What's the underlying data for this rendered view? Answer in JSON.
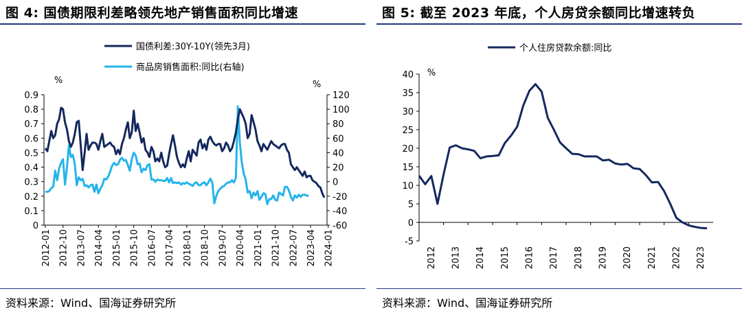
{
  "left": {
    "title": "图 4:  国债期限利差略领先地产销售面积同比增速",
    "source": "资料来源：Wind、国海证券研究所",
    "chart_data": {
      "type": "line",
      "x_ticks": [
        "2012-01",
        "2012-10",
        "2013-07",
        "2014-04",
        "2015-01",
        "2015-10",
        "2016-07",
        "2017-04",
        "2018-01",
        "2018-10",
        "2019-07",
        "2020-04",
        "2021-01",
        "2021-10",
        "2022-07",
        "2023-04",
        "2024-01"
      ],
      "ylabel_left": "%",
      "ylabel_right": "%",
      "ylim_left": [
        0,
        0.9
      ],
      "yticks_left": [
        "0",
        "0.1",
        "0.2",
        "0.3",
        "0.4",
        "0.5",
        "0.6",
        "0.7",
        "0.8",
        "0.9"
      ],
      "ylim_right": [
        -60,
        120
      ],
      "yticks_right": [
        "-60",
        "-40",
        "-20",
        "0",
        "20",
        "40",
        "60",
        "80",
        "100",
        "120"
      ],
      "legend_position": "top-center",
      "series": [
        {
          "name": "国债利差:30Y-10Y(领先3月)",
          "axis": "left",
          "color": "#14285e",
          "x_start": "2012-01",
          "step": "month",
          "values": [
            0.53,
            0.51,
            0.58,
            0.65,
            0.6,
            0.62,
            0.7,
            0.73,
            0.81,
            0.8,
            0.71,
            0.66,
            0.58,
            0.54,
            0.57,
            0.63,
            0.71,
            0.72,
            0.55,
            0.38,
            0.5,
            0.63,
            0.52,
            0.55,
            0.57,
            0.57,
            0.56,
            0.52,
            0.58,
            0.63,
            0.54,
            0.55,
            0.56,
            0.57,
            0.55,
            0.54,
            0.49,
            0.52,
            0.49,
            0.56,
            0.6,
            0.66,
            0.71,
            0.6,
            0.64,
            0.79,
            0.65,
            0.7,
            0.64,
            0.57,
            0.6,
            0.52,
            0.5,
            0.47,
            0.54,
            0.51,
            0.44,
            0.46,
            0.44,
            0.5,
            0.44,
            0.4,
            0.41,
            0.49,
            0.56,
            0.62,
            0.55,
            0.47,
            0.43,
            0.4,
            0.42,
            0.4,
            0.46,
            0.51,
            0.44,
            0.52,
            0.5,
            0.48,
            0.57,
            0.59,
            0.53,
            0.56,
            0.52,
            0.59,
            0.61,
            0.58,
            0.56,
            0.55,
            0.56,
            0.56,
            0.51,
            0.53,
            0.57,
            0.55,
            0.51,
            0.53,
            0.58,
            0.64,
            0.73,
            0.8,
            0.77,
            0.74,
            0.7,
            0.6,
            0.63,
            0.76,
            0.71,
            0.66,
            0.58,
            0.55,
            0.51,
            0.56,
            0.54,
            0.52,
            0.55,
            0.58,
            0.56,
            0.55,
            0.54,
            0.53,
            0.55,
            0.56,
            0.56,
            0.52,
            0.5,
            0.42,
            0.4,
            0.38,
            0.4,
            0.38,
            0.36,
            0.34,
            0.37,
            0.33,
            0.34,
            0.34,
            0.31,
            0.3,
            0.29,
            0.27,
            0.26,
            0.22,
            0.19
          ]
        },
        {
          "name": "商品房销售面积:同比(右轴)",
          "axis": "right",
          "color": "#24b4ea",
          "x_start": "2012-01",
          "step": "month",
          "values": [
            -14,
            -14,
            -13,
            -9,
            -7,
            15,
            2,
            18,
            26,
            31,
            -4,
            20,
            50,
            34,
            37,
            24,
            -5,
            6,
            2,
            4,
            -6,
            -5,
            -8,
            -5,
            -4,
            -14,
            -4,
            -16,
            -10,
            -5,
            4,
            3,
            7,
            14,
            22,
            26,
            23,
            24,
            30,
            33,
            29,
            30,
            23,
            15,
            31,
            40,
            36,
            24,
            25,
            13,
            18,
            16,
            23,
            24,
            3,
            3,
            0,
            3,
            2,
            2,
            1,
            1,
            5,
            -1,
            5,
            -2,
            -1,
            -2,
            -1,
            -4,
            -2,
            -3,
            -1,
            -3,
            -4,
            -6,
            -2,
            -1,
            -5,
            -5,
            -2,
            -1,
            -5,
            -1,
            4,
            -1,
            -30,
            -20,
            -13,
            -10,
            -7,
            -6,
            -3,
            -1,
            -1,
            2,
            -1,
            5,
            104,
            54,
            27,
            11,
            3,
            -15,
            -13,
            -23,
            -15,
            -19,
            -13,
            -25,
            -21,
            -16,
            -17,
            -31,
            -24,
            -24,
            -19,
            -25,
            -26,
            -15,
            -17,
            -19,
            -7,
            -7,
            -12,
            -21,
            -26,
            -19,
            -22,
            -18,
            -21,
            -18,
            -18,
            -19,
            -20
          ]
        }
      ]
    }
  },
  "right": {
    "title": "图 5:  截至 2023 年底，个人房贷余额同比增速转负",
    "source": "资料来源：Wind、国海证券研究所",
    "chart_data": {
      "type": "line",
      "x_ticks": [
        "2012",
        "2013",
        "2014",
        "2015",
        "2016",
        "2017",
        "2018",
        "2019",
        "2020",
        "2021",
        "2022",
        "2023"
      ],
      "ylabel": "%",
      "ylim": [
        -5,
        40
      ],
      "yticks": [
        "-5",
        "0",
        "5",
        "10",
        "15",
        "20",
        "25",
        "30",
        "35",
        "40"
      ],
      "legend_position": "top-center",
      "series": [
        {
          "name": "个人住房贷款余额:同比",
          "color": "#14285e",
          "x": [
            2012.0,
            2012.25,
            2012.5,
            2012.75,
            2013.0,
            2013.25,
            2013.5,
            2013.75,
            2014.0,
            2014.25,
            2014.5,
            2014.75,
            2015.0,
            2015.25,
            2015.5,
            2015.75,
            2016.0,
            2016.25,
            2016.5,
            2016.75,
            2017.0,
            2017.25,
            2017.5,
            2017.75,
            2018.0,
            2018.25,
            2018.5,
            2018.75,
            2019.0,
            2019.25,
            2019.5,
            2019.75,
            2020.0,
            2020.25,
            2020.5,
            2020.75,
            2021.0,
            2021.25,
            2021.5,
            2021.75,
            2022.0,
            2022.25,
            2022.5,
            2022.75,
            2023.0,
            2023.25,
            2023.5,
            2023.75
          ],
          "values": [
            12.6,
            10.3,
            12.5,
            5.0,
            13.0,
            20.2,
            20.8,
            20.0,
            19.7,
            19.3,
            17.3,
            17.8,
            17.9,
            18.1,
            21.4,
            23.4,
            25.8,
            31.5,
            35.5,
            37.3,
            35.3,
            28.2,
            25.0,
            21.6,
            20.0,
            18.5,
            18.4,
            17.8,
            17.8,
            17.8,
            16.7,
            16.9,
            15.9,
            15.6,
            15.8,
            14.6,
            14.4,
            12.8,
            10.8,
            10.9,
            8.4,
            5.0,
            1.2,
            0.0,
            -0.8,
            -1.2,
            -1.5,
            -1.6
          ]
        }
      ]
    }
  }
}
